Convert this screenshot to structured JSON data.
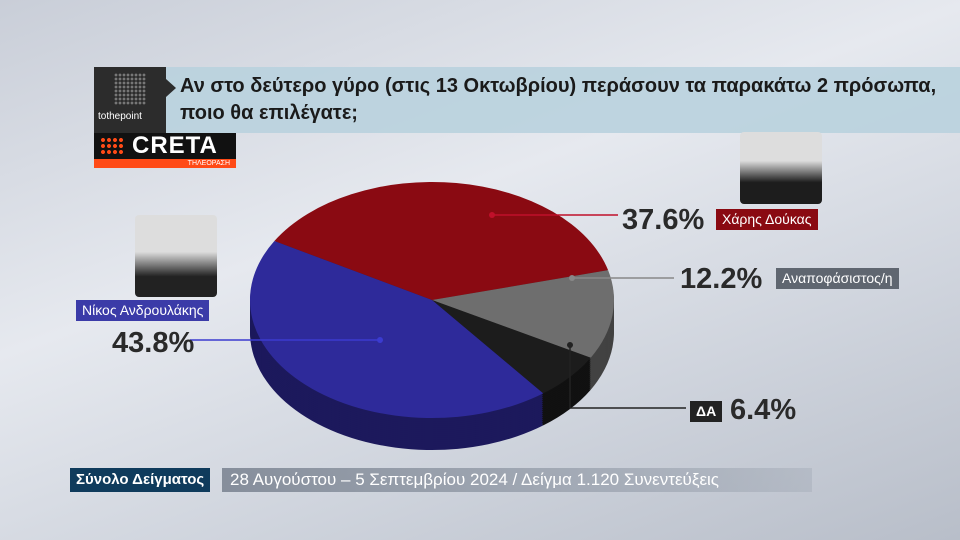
{
  "header": {
    "question": "Αν στο δεύτερο γύρο (στις 13 Οκτωβρίου) περάσουν τα παρακάτω 2 πρόσωπα, ποιο θα επιλέγατε;",
    "logo_pollster": "tothepoint",
    "logo_channel": "CRETA",
    "logo_channel_sub": "ΤΗΛΕΟΡΑΣΗ"
  },
  "chart_data": {
    "type": "pie",
    "title": "Αν στο δεύτερο γύρο (στις 13 Οκτωβρίου) περάσουν τα παρακάτω 2 πρόσωπα, ποιο θα επιλέγατε;",
    "slices": [
      {
        "name": "Χάρης Δούκας",
        "value": 37.6,
        "label": "37.6%",
        "color": "#8a0a12"
      },
      {
        "name": "Αναποφάσιστος/η",
        "value": 12.2,
        "label": "12.2%",
        "color": "#6e6e6e"
      },
      {
        "name": "ΔΑ",
        "value": 6.4,
        "label": "6.4%",
        "color": "#1c1c1c"
      },
      {
        "name": "Νίκος Ανδρουλάκης",
        "value": 43.8,
        "label": "43.8%",
        "color": "#2e2a9a"
      }
    ]
  },
  "footer": {
    "label": "Σύνολο Δείγματος",
    "text": "28 Αυγούστου – 5 Σεπτεμβρίου 2024  / Δείγμα 1.120 Συνεντεύξεις"
  }
}
